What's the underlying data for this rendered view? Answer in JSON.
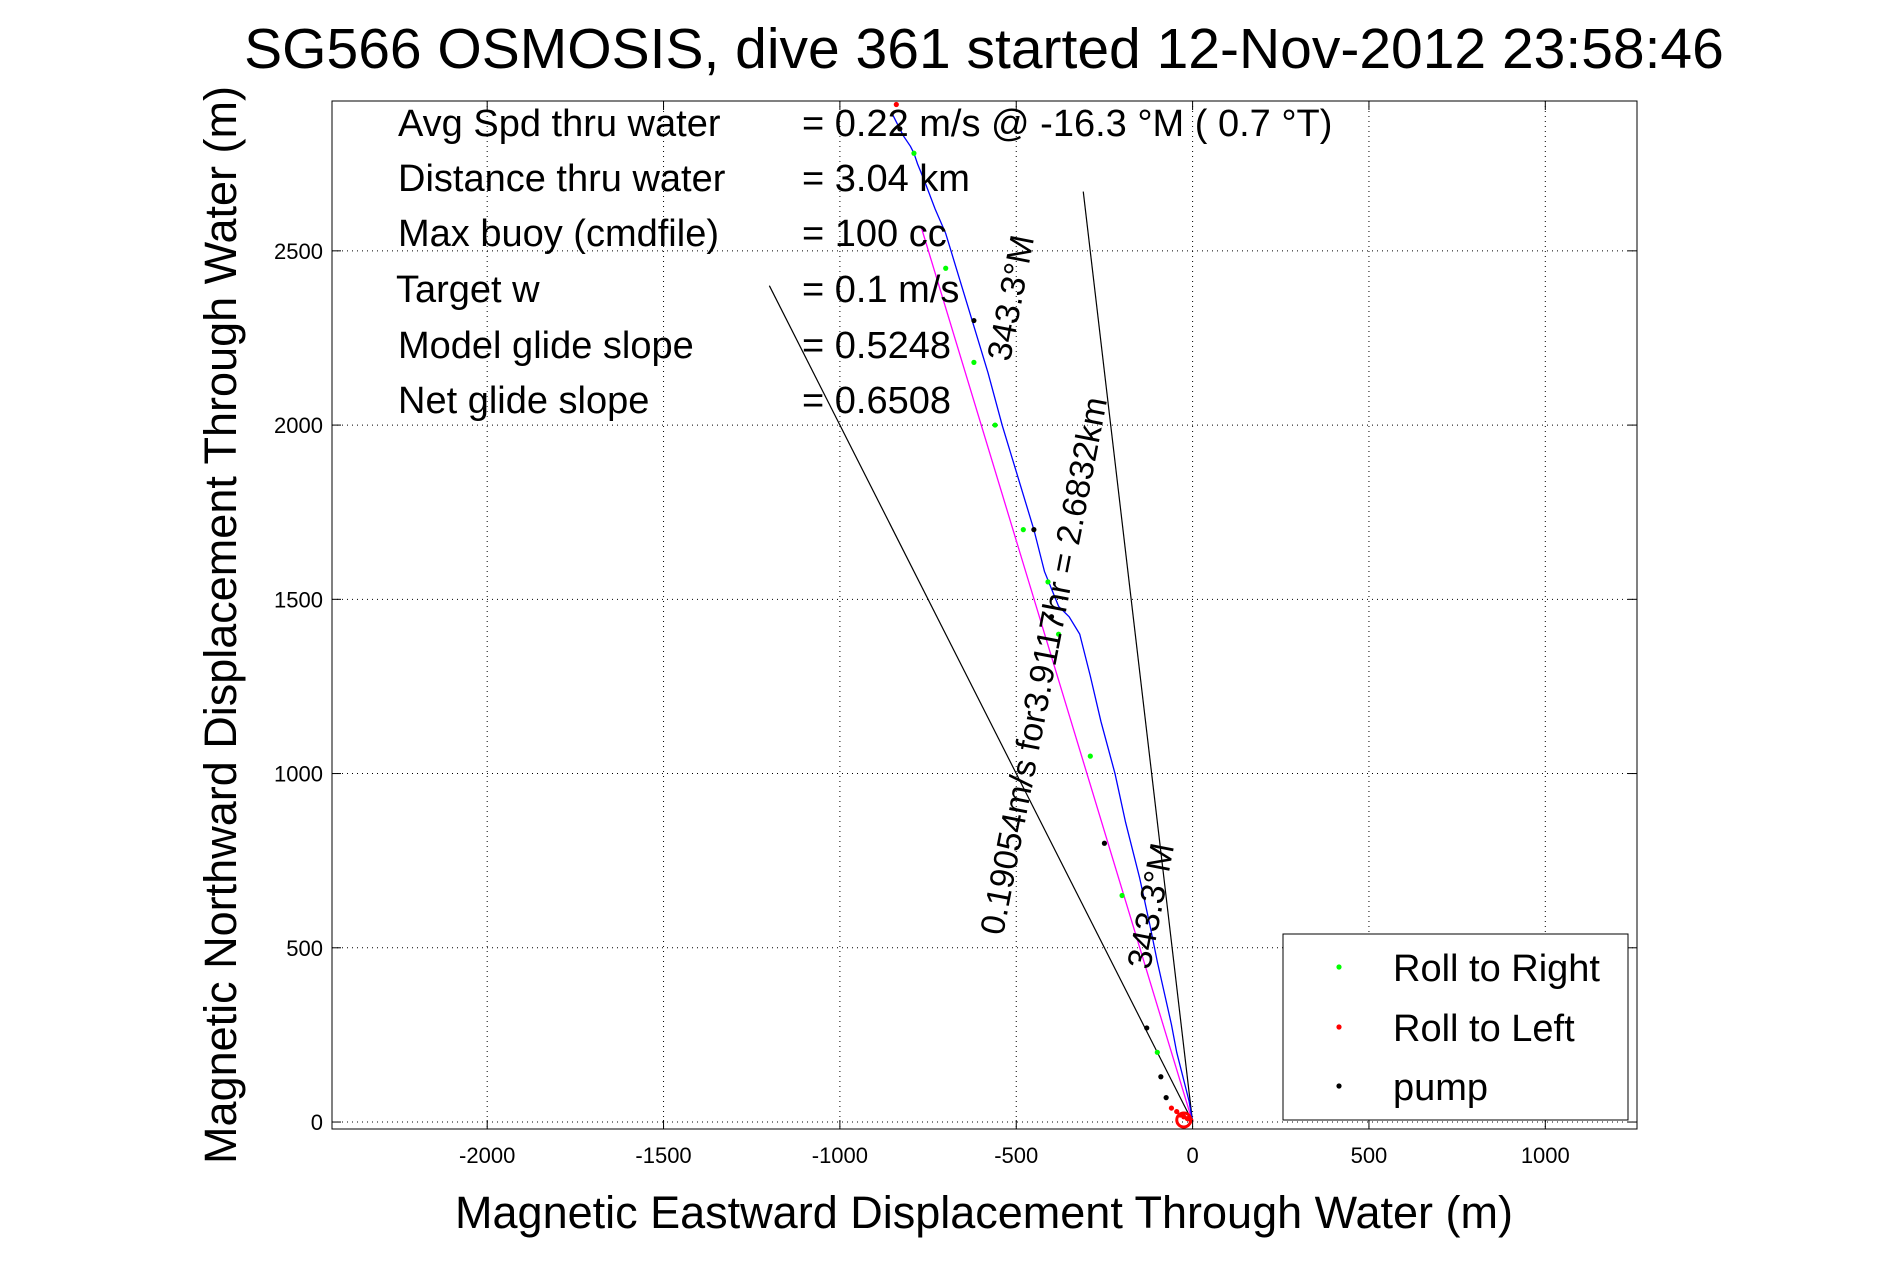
{
  "chart_data": {
    "type": "line",
    "title": "SG566 OSMOSIS, dive 361 started 12-Nov-2012 23:58:46",
    "xlabel": "Magnetic Eastward Displacement Through Water (m)",
    "ylabel": "Magnetic Northward Displacement Through Water (m)",
    "xlim": [
      -2440,
      1260
    ],
    "ylim": [
      -20,
      2930
    ],
    "xticks": [
      -2000,
      -1500,
      -1000,
      -500,
      0,
      500,
      1000
    ],
    "yticks": [
      0,
      500,
      1000,
      1500,
      2000,
      2500
    ],
    "xtick_labels": [
      "-2000",
      "-1500",
      "-1000",
      "-500",
      "0",
      "500",
      "1000"
    ],
    "ytick_labels": [
      "0",
      "500",
      "1000",
      "1500",
      "2000",
      "2500"
    ],
    "grid": true,
    "legend_position": "bottom-right",
    "stats": [
      {
        "label": "Avg Spd thru water",
        "value": "=  0.22 m/s @ -16.3 °M (  0.7 °T)"
      },
      {
        "label": "Distance thru water",
        "value": "=  3.04 km"
      },
      {
        "label": "Max buoy (cmdfile)",
        "value": "= 100 cc"
      },
      {
        "label": "Target w",
        "value": "= 0.1 m/s"
      },
      {
        "label": "Model glide slope",
        "value": "= 0.5248"
      },
      {
        "label": "Net glide slope",
        "value": "= 0.6508"
      }
    ],
    "annotations": [
      {
        "text": "0.19054m/s for3.9117hr = 2.6832km",
        "x": -430,
        "y": 1500,
        "angle_deg": -79
      },
      {
        "text": "343.3°M",
        "x": -490,
        "y": 2200,
        "angle_deg": -79
      },
      {
        "text": "343.3°M",
        "x": -130,
        "y": 500,
        "angle_deg": -79
      }
    ],
    "series": [
      {
        "name": "track",
        "color": "#0000ff",
        "x": [
          0,
          -10,
          -25,
          -45,
          -60,
          -80,
          -100,
          -120,
          -150,
          -190,
          -220,
          -260,
          -290,
          -320,
          -350,
          -380,
          -400,
          -420,
          -430,
          -450,
          -480,
          -510,
          -540,
          -580,
          -610,
          -640,
          -670,
          -700,
          -730,
          -760,
          -780,
          -790,
          -800,
          -820,
          -840,
          -850
        ],
        "y": [
          0,
          60,
          120,
          200,
          280,
          370,
          460,
          560,
          700,
          860,
          1000,
          1150,
          1280,
          1400,
          1450,
          1480,
          1530,
          1580,
          1620,
          1700,
          1800,
          1900,
          2000,
          2150,
          2250,
          2350,
          2450,
          2550,
          2620,
          2700,
          2750,
          2780,
          2800,
          2830,
          2870,
          2890
        ]
      },
      {
        "name": "heading",
        "color": "#ff00ff",
        "x": [
          0,
          -770
        ],
        "y": [
          0,
          2570
        ]
      },
      {
        "name": "Roll to Right",
        "color": "#00ff00",
        "x": [
          -100,
          -200,
          -290,
          -380,
          -410,
          -480,
          -560,
          -620,
          -700,
          -790
        ],
        "y": [
          200,
          650,
          1050,
          1400,
          1550,
          1700,
          2000,
          2180,
          2450,
          2780
        ]
      },
      {
        "name": "Roll to Left",
        "color": "#ff0000",
        "x": [
          -5,
          -15,
          -25,
          -35,
          -45,
          -60,
          -840
        ],
        "y": [
          5,
          10,
          15,
          20,
          30,
          40,
          2920
        ]
      },
      {
        "name": "pump",
        "color": "#000000",
        "x": [
          -75,
          -90,
          -130,
          -250,
          -400,
          -450,
          -620,
          -830
        ],
        "y": [
          70,
          130,
          270,
          800,
          1450,
          1700,
          2300,
          2850
        ]
      }
    ],
    "guide_lines": [
      {
        "x": [
          0,
          -1200
        ],
        "y": [
          0,
          2400
        ],
        "color": "#000000"
      },
      {
        "x": [
          0,
          -310
        ],
        "y": [
          0,
          2670
        ],
        "color": "#000000"
      }
    ],
    "legend": [
      {
        "label": "Roll to Right",
        "color": "#00ff00"
      },
      {
        "label": "Roll to Left",
        "color": "#ff0000"
      },
      {
        "label": "pump",
        "color": "#000000"
      }
    ]
  }
}
